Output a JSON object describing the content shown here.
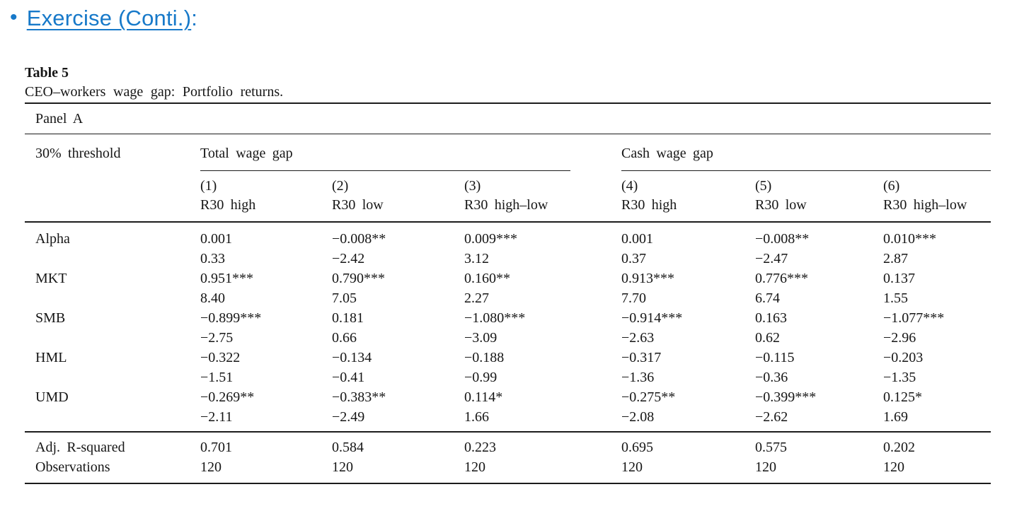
{
  "accent_color": "#1779c9",
  "title": {
    "bullet": "•",
    "text": "Exercise (Conti.)",
    "suffix": ":"
  },
  "table": {
    "title": "Table 5",
    "caption": "CEO–workers wage gap: Portfolio returns.",
    "panel": "Panel A",
    "row_header": "30% threshold",
    "groups": [
      {
        "label": "Total wage gap"
      },
      {
        "label": "Cash wage gap"
      }
    ],
    "column_numbers": [
      "(1)",
      "(2)",
      "(3)",
      "(4)",
      "(5)",
      "(6)"
    ],
    "column_labels": [
      "R30 high",
      "R30 low",
      "R30 high–low",
      "R30 high",
      "R30 low",
      "R30 high–low"
    ],
    "rows": [
      {
        "label": "Alpha",
        "coefs": [
          "0.001",
          "−0.008**",
          "0.009***",
          "0.001",
          "−0.008**",
          "0.010***"
        ],
        "tstats": [
          "0.33",
          "−2.42",
          "3.12",
          "0.37",
          "−2.47",
          "2.87"
        ]
      },
      {
        "label": "MKT",
        "coefs": [
          "0.951***",
          "0.790***",
          "0.160**",
          "0.913***",
          "0.776***",
          "0.137"
        ],
        "tstats": [
          "8.40",
          "7.05",
          "2.27",
          "7.70",
          "6.74",
          "1.55"
        ]
      },
      {
        "label": "SMB",
        "coefs": [
          "−0.899***",
          "0.181",
          "−1.080***",
          "−0.914***",
          "0.163",
          "−1.077***"
        ],
        "tstats": [
          "−2.75",
          "0.66",
          "−3.09",
          "−2.63",
          "0.62",
          "−2.96"
        ]
      },
      {
        "label": "HML",
        "coefs": [
          "−0.322",
          "−0.134",
          "−0.188",
          "−0.317",
          "−0.115",
          "−0.203"
        ],
        "tstats": [
          "−1.51",
          "−0.41",
          "−0.99",
          "−1.36",
          "−0.36",
          "−1.35"
        ]
      },
      {
        "label": "UMD",
        "coefs": [
          "−0.269**",
          "−0.383**",
          "0.114*",
          "−0.275**",
          "−0.399***",
          "0.125*"
        ],
        "tstats": [
          "−2.11",
          "−2.49",
          "1.66",
          "−2.08",
          "−2.62",
          "1.69"
        ]
      }
    ],
    "stats": [
      {
        "label": "Adj. R-squared",
        "values": [
          "0.701",
          "0.584",
          "0.223",
          "0.695",
          "0.575",
          "0.202"
        ]
      },
      {
        "label": "Observations",
        "values": [
          "120",
          "120",
          "120",
          "120",
          "120",
          "120"
        ]
      }
    ]
  }
}
